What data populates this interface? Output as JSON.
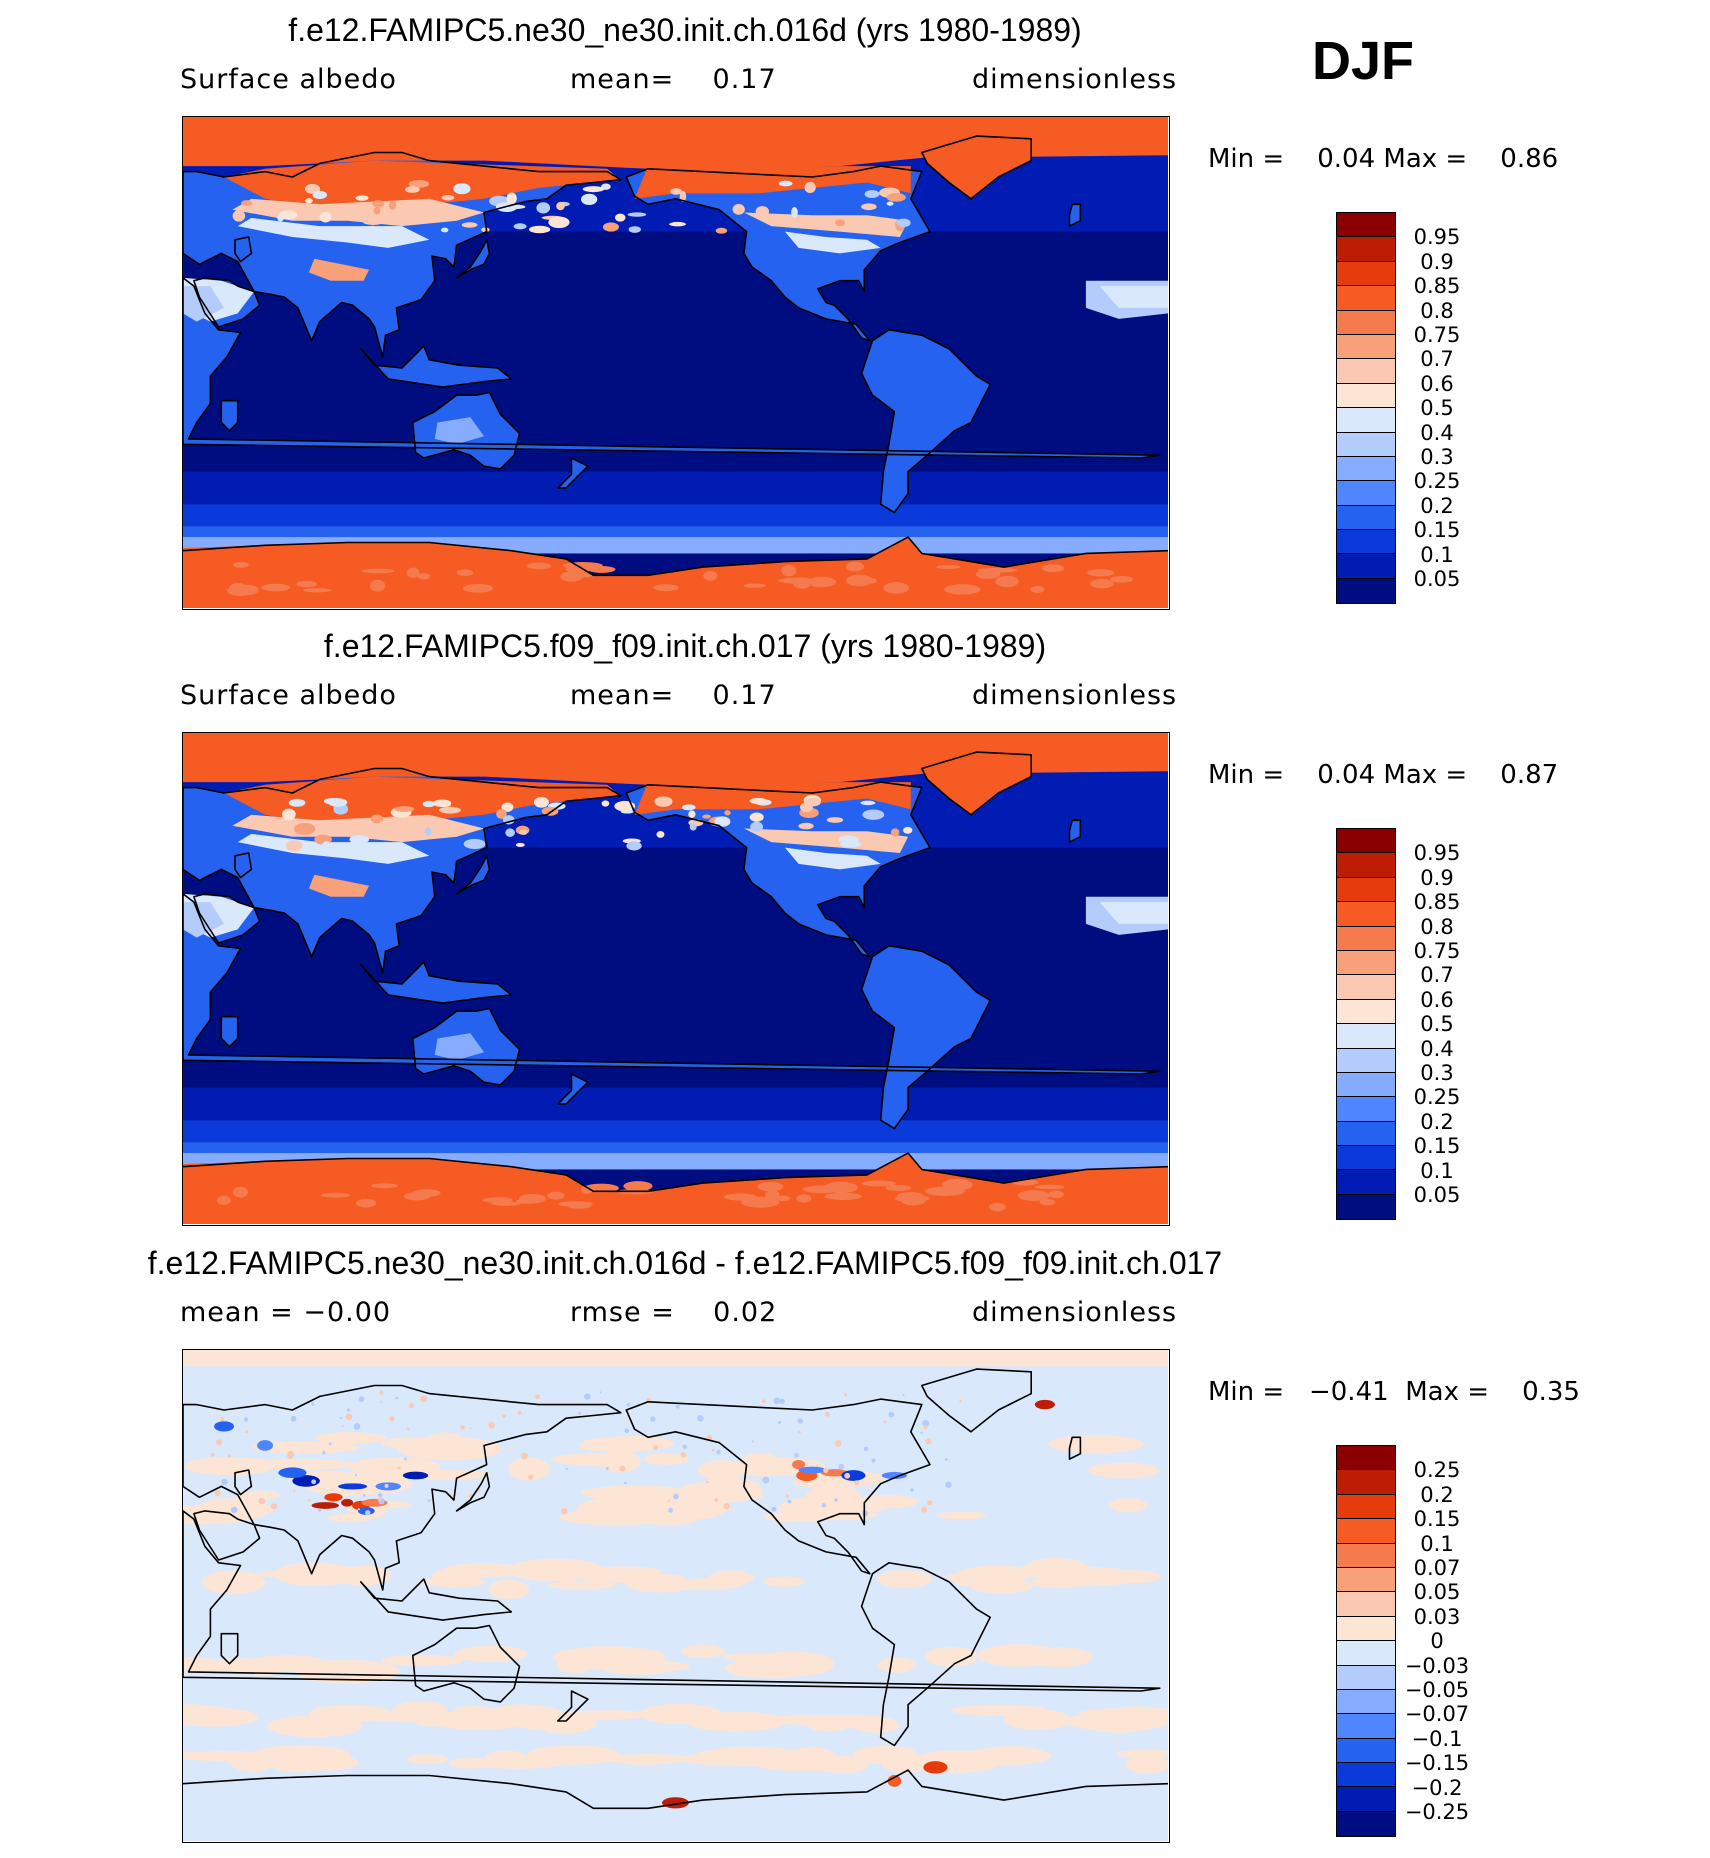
{
  "season": "DJF",
  "palette_albedo": [
    "#000d80",
    "#001cb3",
    "#0a3ad9",
    "#2562f0",
    "#4f86ff",
    "#86acff",
    "#b4ccfb",
    "#d9e8fb",
    "#fde5d6",
    "#fbc9b1",
    "#f7a07a",
    "#f57a4e",
    "#f55b23",
    "#e63c0d",
    "#bd1d05",
    "#8a0000"
  ],
  "palette_diff": [
    "#000d80",
    "#001cb3",
    "#0a3ad9",
    "#2562f0",
    "#4f86ff",
    "#86acff",
    "#b4ccfb",
    "#d9e8fb",
    "#fde5d6",
    "#fbc9b1",
    "#f7a07a",
    "#f57a4e",
    "#f55b23",
    "#e63c0d",
    "#bd1d05",
    "#8a0000"
  ],
  "panels": [
    {
      "title": "f.e12.FAMIPC5.ne30_ne30.init.ch.016d (yrs 1980-1989)",
      "sub_left": "Surface albedo",
      "sub_mid_label": "mean=",
      "sub_mid_value": "0.17",
      "sub_right": "dimensionless",
      "min_label": "Min =",
      "min_value": "0.04",
      "max_label": "Max =",
      "max_value": "0.86",
      "levels": [
        "0.95",
        "0.9",
        "0.85",
        "0.8",
        "0.75",
        "0.7",
        "0.6",
        "0.5",
        "0.4",
        "0.3",
        "0.25",
        "0.2",
        "0.15",
        "0.1",
        "0.05"
      ]
    },
    {
      "title": "f.e12.FAMIPC5.f09_f09.init.ch.017 (yrs 1980-1989)",
      "sub_left": "Surface albedo",
      "sub_mid_label": "mean=",
      "sub_mid_value": "0.17",
      "sub_right": "dimensionless",
      "min_label": "Min =",
      "min_value": "0.04",
      "max_label": "Max =",
      "max_value": "0.87",
      "levels": [
        "0.95",
        "0.9",
        "0.85",
        "0.8",
        "0.75",
        "0.7",
        "0.6",
        "0.5",
        "0.4",
        "0.3",
        "0.25",
        "0.2",
        "0.15",
        "0.1",
        "0.05"
      ]
    },
    {
      "title": "f.e12.FAMIPC5.ne30_ne30.init.ch.016d - f.e12.FAMIPC5.f09_f09.init.ch.017",
      "sub_left": "mean =   −0.00",
      "sub_mid_label": "rmse =",
      "sub_mid_value": "0.02",
      "sub_right": "dimensionless",
      "min_label": "Min =",
      "min_value": "−0.41",
      "max_label": "Max =",
      "max_value": "0.35",
      "levels": [
        "0.25",
        "0.2",
        "0.15",
        "0.1",
        "0.07",
        "0.05",
        "0.03",
        "0",
        "−0.03",
        "−0.05",
        "−0.07",
        "−0.1",
        "−0.15",
        "−0.2",
        "−0.25"
      ]
    }
  ]
}
